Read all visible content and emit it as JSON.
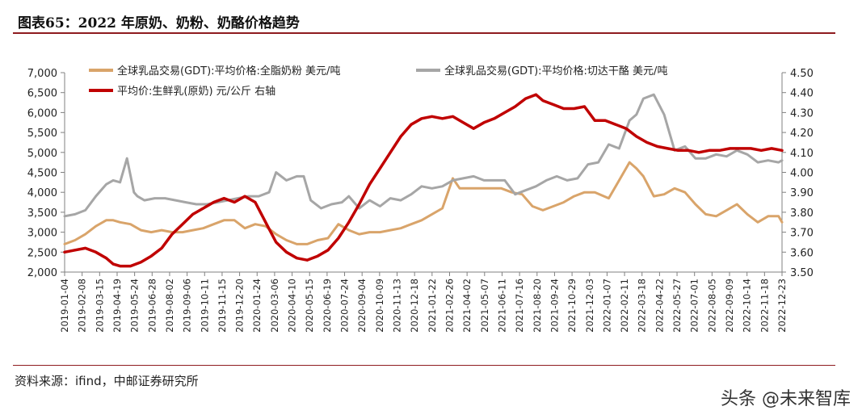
{
  "header": {
    "title": "图表65：2022 年原奶、奶粉、奶酪价格趋势"
  },
  "footer": {
    "source": "资料来源：ifind，中邮证券研究所",
    "watermark": "头条 @未来智库"
  },
  "colors": {
    "wmp": "#d9a46a",
    "cheddar": "#a6a6a6",
    "raw_milk": "#c00000",
    "axis": "#808080",
    "rule": "#8e1b1f"
  },
  "chart_data": {
    "type": "line",
    "title": "",
    "xlabel": "",
    "ylabel": "",
    "y2label": "",
    "ylim": [
      2000,
      7000
    ],
    "y2lim": [
      3.5,
      4.5
    ],
    "yticks": [
      "2,000",
      "2,500",
      "3,000",
      "3,500",
      "4,000",
      "4,500",
      "5,000",
      "5,500",
      "6,000",
      "6,500",
      "7,000"
    ],
    "y2ticks": [
      "3.50",
      "3.60",
      "3.70",
      "3.80",
      "3.90",
      "4.00",
      "4.10",
      "4.20",
      "4.30",
      "4.40",
      "4.50"
    ],
    "xticks": [
      "2019-01-04",
      "2019-02-08",
      "2019-03-15",
      "2019-04-19",
      "2019-05-24",
      "2019-06-28",
      "2019-08-02",
      "2019-09-06",
      "2019-10-11",
      "2019-11-15",
      "2019-12-20",
      "2020-01-24",
      "2020-03-06",
      "2020-04-10",
      "2020-05-15",
      "2020-06-19",
      "2020-07-24",
      "2020-09-04",
      "2020-10-09",
      "2020-11-13",
      "2020-12-18",
      "2021-01-22",
      "2021-02-26",
      "2021-04-02",
      "2021-05-07",
      "2021-06-11",
      "2021-07-16",
      "2021-08-20",
      "2021-09-24",
      "2021-10-29",
      "2021-12-03",
      "2022-01-07",
      "2022-02-11",
      "2022-03-18",
      "2022-04-22",
      "2022-05-27",
      "2022-07-01",
      "2022-08-05",
      "2022-09-09",
      "2022-10-14",
      "2022-11-18",
      "2022-12-23"
    ],
    "grid": false,
    "legend": "top",
    "series": [
      {
        "name": "全球乳品交易(GDT):平均价格:全脂奶粉 美元/吨",
        "axis": "left",
        "x": [
          "2019-01-04",
          "2019-01-25",
          "2019-02-15",
          "2019-03-08",
          "2019-03-29",
          "2019-04-12",
          "2019-04-26",
          "2019-05-17",
          "2019-06-07",
          "2019-06-28",
          "2019-07-19",
          "2019-08-09",
          "2019-08-30",
          "2019-09-20",
          "2019-10-11",
          "2019-11-01",
          "2019-11-22",
          "2019-12-13",
          "2020-01-03",
          "2020-01-24",
          "2020-02-14",
          "2020-03-06",
          "2020-03-27",
          "2020-04-17",
          "2020-05-08",
          "2020-05-29",
          "2020-06-19",
          "2020-07-10",
          "2020-07-31",
          "2020-08-21",
          "2020-09-11",
          "2020-10-02",
          "2020-10-23",
          "2020-11-13",
          "2020-12-04",
          "2020-12-25",
          "2021-01-15",
          "2021-02-05",
          "2021-02-26",
          "2021-03-12",
          "2021-04-02",
          "2021-04-23",
          "2021-05-14",
          "2021-06-04",
          "2021-06-25",
          "2021-07-16",
          "2021-08-06",
          "2021-08-27",
          "2021-09-17",
          "2021-10-08",
          "2021-10-29",
          "2021-11-19",
          "2021-12-10",
          "2022-01-07",
          "2022-01-28",
          "2022-02-18",
          "2022-03-04",
          "2022-03-18",
          "2022-04-08",
          "2022-04-29",
          "2022-05-20",
          "2022-06-10",
          "2022-07-01",
          "2022-07-22",
          "2022-08-12",
          "2022-09-02",
          "2022-09-23",
          "2022-10-14",
          "2022-11-04",
          "2022-11-25",
          "2022-12-16",
          "2022-12-23"
        ],
        "values": [
          2700,
          2800,
          2950,
          3150,
          3300,
          3300,
          3250,
          3200,
          3050,
          3000,
          3050,
          3000,
          3000,
          3050,
          3100,
          3200,
          3300,
          3300,
          3100,
          3200,
          3150,
          2950,
          2800,
          2700,
          2700,
          2800,
          2850,
          3200,
          3050,
          2950,
          3000,
          3000,
          3050,
          3100,
          3200,
          3300,
          3450,
          3600,
          4350,
          4100,
          4100,
          4100,
          4100,
          4100,
          4000,
          3950,
          3650,
          3550,
          3650,
          3750,
          3900,
          4000,
          4000,
          3850,
          4300,
          4750,
          4600,
          4400,
          3900,
          3950,
          4100,
          4000,
          3700,
          3450,
          3400,
          3550,
          3700,
          3450,
          3250,
          3400,
          3400,
          3250
        ]
      },
      {
        "name": "全球乳品交易(GDT):平均价格:切达干酪 美元/吨",
        "axis": "left",
        "x": [
          "2019-01-04",
          "2019-01-25",
          "2019-02-15",
          "2019-03-08",
          "2019-03-29",
          "2019-04-12",
          "2019-04-26",
          "2019-05-10",
          "2019-05-24",
          "2019-05-31",
          "2019-06-14",
          "2019-07-05",
          "2019-07-26",
          "2019-08-16",
          "2019-09-06",
          "2019-09-27",
          "2019-10-18",
          "2019-11-08",
          "2019-11-29",
          "2019-12-20",
          "2020-01-10",
          "2020-01-31",
          "2020-02-21",
          "2020-03-06",
          "2020-03-27",
          "2020-04-17",
          "2020-05-01",
          "2020-05-15",
          "2020-06-05",
          "2020-06-26",
          "2020-07-17",
          "2020-07-31",
          "2020-08-21",
          "2020-09-11",
          "2020-10-02",
          "2020-10-23",
          "2020-11-13",
          "2020-12-04",
          "2020-12-25",
          "2021-01-15",
          "2021-02-05",
          "2021-02-26",
          "2021-03-19",
          "2021-04-09",
          "2021-04-30",
          "2021-05-21",
          "2021-06-11",
          "2021-07-02",
          "2021-07-23",
          "2021-08-13",
          "2021-09-03",
          "2021-09-24",
          "2021-10-15",
          "2021-11-05",
          "2021-11-26",
          "2021-12-17",
          "2022-01-07",
          "2022-01-28",
          "2022-02-18",
          "2022-03-04",
          "2022-03-18",
          "2022-04-08",
          "2022-04-29",
          "2022-05-20",
          "2022-06-10",
          "2022-07-01",
          "2022-07-22",
          "2022-08-12",
          "2022-09-02",
          "2022-09-23",
          "2022-10-14",
          "2022-11-04",
          "2022-11-25",
          "2022-12-16",
          "2022-12-23"
        ],
        "values": [
          3400,
          3450,
          3550,
          3900,
          4200,
          4300,
          4250,
          4850,
          4000,
          3900,
          3800,
          3850,
          3850,
          3800,
          3750,
          3700,
          3700,
          3750,
          3800,
          3850,
          3900,
          3900,
          4000,
          4500,
          4300,
          4400,
          4400,
          3800,
          3600,
          3700,
          3750,
          3900,
          3600,
          3800,
          3650,
          3850,
          3800,
          3950,
          4150,
          4100,
          4150,
          4300,
          4350,
          4400,
          4300,
          4300,
          4300,
          3950,
          4050,
          4150,
          4300,
          4400,
          4300,
          4350,
          4700,
          4750,
          5200,
          5100,
          5800,
          5950,
          6350,
          6450,
          5950,
          5050,
          5150,
          4850,
          4850,
          4950,
          4900,
          5050,
          4950,
          4750,
          4800,
          4750,
          4800
        ]
      },
      {
        "name": "平均价:生鲜乳(原奶) 元/公斤 右轴",
        "axis": "right",
        "x": [
          "2019-01-04",
          "2019-01-25",
          "2019-02-15",
          "2019-03-08",
          "2019-03-29",
          "2019-04-12",
          "2019-04-26",
          "2019-05-17",
          "2019-06-07",
          "2019-06-28",
          "2019-07-19",
          "2019-08-09",
          "2019-08-30",
          "2019-09-20",
          "2019-10-11",
          "2019-11-01",
          "2019-11-22",
          "2019-12-13",
          "2020-01-03",
          "2020-01-24",
          "2020-02-14",
          "2020-03-06",
          "2020-03-27",
          "2020-04-17",
          "2020-05-08",
          "2020-05-29",
          "2020-06-19",
          "2020-07-10",
          "2020-07-31",
          "2020-08-21",
          "2020-09-11",
          "2020-10-02",
          "2020-10-23",
          "2020-11-13",
          "2020-12-04",
          "2020-12-25",
          "2021-01-15",
          "2021-02-05",
          "2021-02-26",
          "2021-03-19",
          "2021-04-09",
          "2021-04-30",
          "2021-05-21",
          "2021-06-11",
          "2021-07-02",
          "2021-07-23",
          "2021-08-13",
          "2021-08-27",
          "2021-09-17",
          "2021-10-08",
          "2021-10-29",
          "2021-11-19",
          "2021-12-10",
          "2021-12-31",
          "2022-01-21",
          "2022-02-11",
          "2022-03-04",
          "2022-03-25",
          "2022-04-15",
          "2022-05-06",
          "2022-05-27",
          "2022-06-17",
          "2022-07-08",
          "2022-07-29",
          "2022-08-19",
          "2022-09-09",
          "2022-09-30",
          "2022-10-21",
          "2022-11-11",
          "2022-12-02",
          "2022-12-23"
        ],
        "values": [
          3.6,
          3.61,
          3.62,
          3.6,
          3.57,
          3.54,
          3.53,
          3.53,
          3.55,
          3.58,
          3.62,
          3.69,
          3.74,
          3.79,
          3.82,
          3.85,
          3.87,
          3.85,
          3.88,
          3.85,
          3.75,
          3.65,
          3.6,
          3.57,
          3.56,
          3.58,
          3.61,
          3.67,
          3.75,
          3.84,
          3.94,
          4.02,
          4.1,
          4.18,
          4.24,
          4.27,
          4.28,
          4.27,
          4.28,
          4.25,
          4.22,
          4.25,
          4.27,
          4.3,
          4.33,
          4.37,
          4.39,
          4.36,
          4.34,
          4.32,
          4.32,
          4.33,
          4.26,
          4.26,
          4.24,
          4.22,
          4.18,
          4.15,
          4.13,
          4.12,
          4.11,
          4.11,
          4.1,
          4.11,
          4.11,
          4.12,
          4.12,
          4.12,
          4.11,
          4.12,
          4.11
        ]
      }
    ]
  }
}
